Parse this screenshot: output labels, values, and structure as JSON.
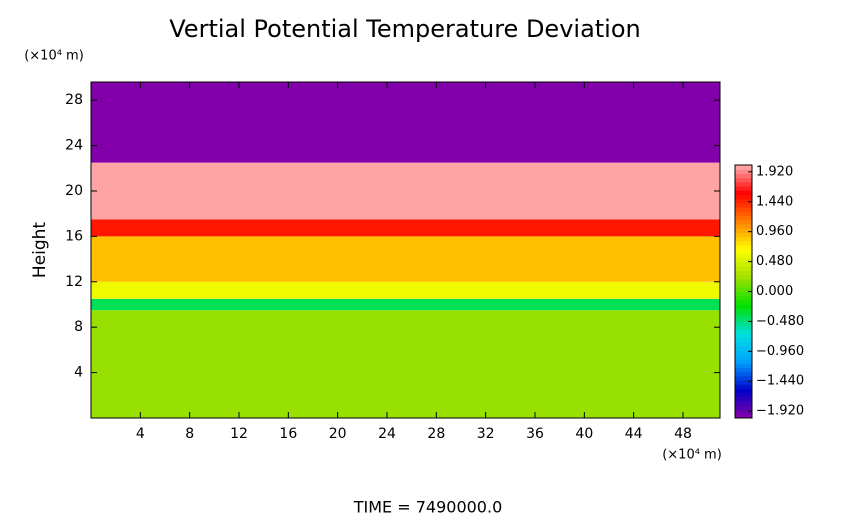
{
  "chart_data": {
    "type": "heatmap",
    "title": "Vertial Potential Temperature Deviation",
    "ylabel": "Height",
    "xunit": "(×10⁴ m)",
    "yunit": "(×10⁴ m)",
    "footer": "TIME = 7490000.0",
    "xlim": [
      0,
      51
    ],
    "ylim": [
      0,
      29.6
    ],
    "xticks": [
      4,
      8,
      12,
      16,
      20,
      24,
      28,
      32,
      36,
      40,
      44,
      48
    ],
    "yticks": [
      4,
      8,
      12,
      16,
      20,
      24,
      28
    ],
    "y_bins": [
      0,
      9.5,
      10.5,
      12,
      16,
      17.5,
      22.5,
      29.6
    ],
    "values": [
      0.2,
      -0.4,
      0.6,
      0.9,
      1.5,
      2.0,
      -2.0
    ],
    "clim": [
      -2.03,
      2.03
    ],
    "colorscale": [
      "#8a00a8",
      "#0000c8",
      "#00a0ff",
      "#00e0e0",
      "#00e000",
      "#a0e000",
      "#ffff00",
      "#ff8000",
      "#ff0000",
      "#ffb0b0"
    ],
    "cticks": [
      {
        "value": 1.92,
        "label": "1.920"
      },
      {
        "value": 1.44,
        "label": "1.440"
      },
      {
        "value": 0.96,
        "label": "0.960"
      },
      {
        "value": 0.48,
        "label": "0.480"
      },
      {
        "value": 0,
        "label": "0.000"
      },
      {
        "value": -0.48,
        "label": "−0.480"
      },
      {
        "value": -0.96,
        "label": "−0.960"
      },
      {
        "value": -1.44,
        "label": "−1.440"
      },
      {
        "value": -1.92,
        "label": "−1.920"
      }
    ]
  }
}
